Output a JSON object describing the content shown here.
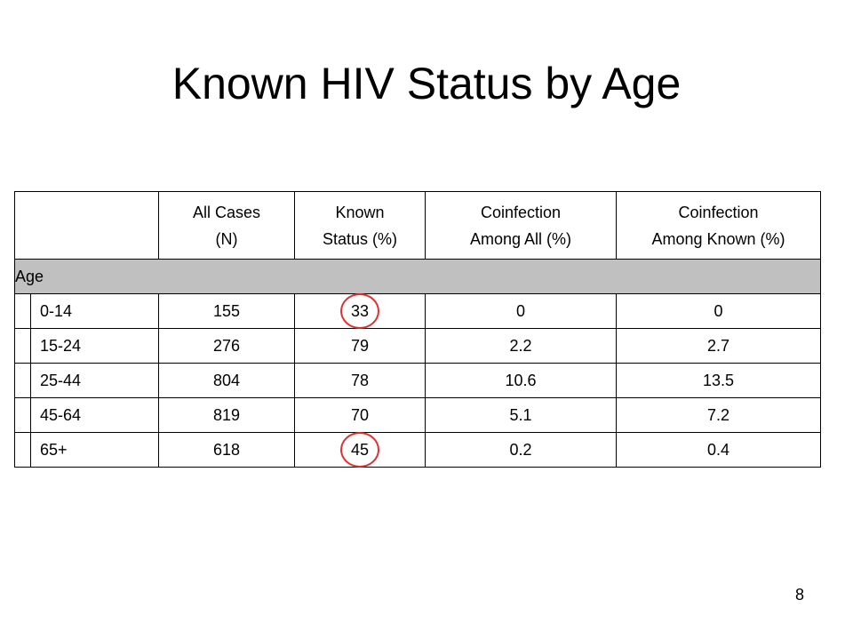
{
  "slide": {
    "title": "Known HIV Status by Age",
    "page_number": "8"
  },
  "table": {
    "headers": {
      "all_cases_line1": "All Cases",
      "all_cases_line2": "(N)",
      "known_line1": "Known",
      "known_line2": "Status (%)",
      "coinf_all_line1": "Coinfection",
      "coinf_all_line2": "Among All (%)",
      "coinf_known_line1": "Coinfection",
      "coinf_known_line2": "Among Known (%)"
    },
    "group_label": "Age",
    "rows": [
      {
        "age": "0-14",
        "all_cases": "155",
        "known": "33",
        "coinf_all": "0",
        "coinf_known": "0",
        "circled": true
      },
      {
        "age": "15-24",
        "all_cases": "276",
        "known": "79",
        "coinf_all": "2.2",
        "coinf_known": "2.7",
        "circled": false
      },
      {
        "age": "25-44",
        "all_cases": "804",
        "known": "78",
        "coinf_all": "10.6",
        "coinf_known": "13.5",
        "circled": false
      },
      {
        "age": "45-64",
        "all_cases": "819",
        "known": "70",
        "coinf_all": "5.1",
        "coinf_known": "7.2",
        "circled": false
      },
      {
        "age": "65+",
        "all_cases": "618",
        "known": "45",
        "coinf_all": "0.2",
        "coinf_known": "0.4",
        "circled": true
      }
    ]
  },
  "colors": {
    "group_row_bg": "#c0c0c0",
    "highlight_ring": "#e03030"
  }
}
